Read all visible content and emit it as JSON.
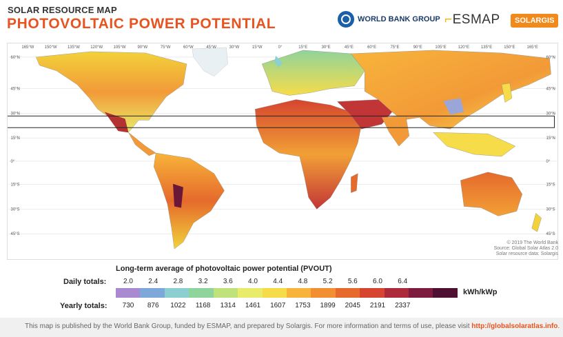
{
  "header": {
    "subtitle": "SOLAR RESOURCE MAP",
    "title": "PHOTOVOLTAIC POWER POTENTIAL"
  },
  "logos": {
    "world_bank": "WORLD BANK GROUP",
    "esmap": "ESMAP",
    "solargis": "SOLARGIS"
  },
  "map": {
    "lon_labels": [
      "165°W",
      "150°W",
      "135°W",
      "120°W",
      "105°W",
      "90°W",
      "75°W",
      "60°W",
      "45°W",
      "30°W",
      "15°W",
      "0°",
      "15°E",
      "30°E",
      "45°E",
      "60°E",
      "75°E",
      "90°E",
      "105°E",
      "120°E",
      "135°E",
      "150°E",
      "165°E"
    ],
    "lat_labels": [
      "60°N",
      "45°N",
      "30°N",
      "15°N",
      "0°",
      "15°S",
      "30°S",
      "45°S"
    ],
    "copyright": [
      "© 2019 The World Bank",
      "Source: Global Solar Atlas 2.0",
      "Solar resource data: Solargis"
    ],
    "colors": {
      "ocean": "#ffffff",
      "low": "#7ec6a4",
      "mid": "#f2d23a",
      "high": "#e2562a",
      "very_high": "#8e1e3c"
    }
  },
  "legend": {
    "title": "Long-term average of photovoltaic power potential (PVOUT)",
    "daily_label": "Daily totals:",
    "yearly_label": "Yearly totals:",
    "daily_values": [
      "2.0",
      "2.4",
      "2.8",
      "3.2",
      "3.6",
      "4.0",
      "4.4",
      "4.8",
      "5.2",
      "5.6",
      "6.0",
      "6.4"
    ],
    "yearly_values": [
      "730",
      "876",
      "1022",
      "1168",
      "1314",
      "1461",
      "1607",
      "1753",
      "1899",
      "2045",
      "2191",
      "2337"
    ],
    "unit": "kWh/kWp",
    "scale_colors": [
      "#a98ad1",
      "#7ea8da",
      "#8ccfd1",
      "#8fd49a",
      "#bfe27a",
      "#e8ec6a",
      "#f7dc4a",
      "#f8b43a",
      "#f28f33",
      "#e56a2c",
      "#d5452f",
      "#ad2a3a",
      "#7d1c3f",
      "#4f1131"
    ]
  },
  "footer": {
    "text": "This map is published by the World Bank Group, funded by ESMAP, and prepared by Solargis. For more information and terms of use, please visit ",
    "link": "http://globalsolaratlas.info",
    "end": "."
  }
}
